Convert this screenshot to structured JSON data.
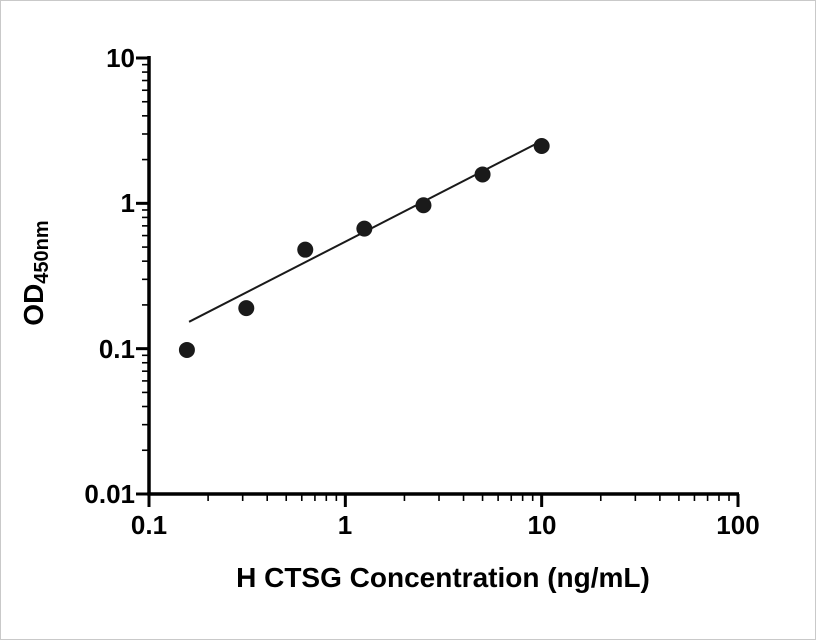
{
  "chart_data": {
    "type": "scatter",
    "title": "",
    "xlabel": "H CTSG Concentration (ng/mL)",
    "ylabel_main": "OD",
    "ylabel_sub": "450nm",
    "x_scale": "log",
    "y_scale": "log",
    "xlim": [
      0.1,
      100
    ],
    "ylim": [
      0.01,
      10
    ],
    "grid": false,
    "legend": "none",
    "x_tick_values": [
      0.1,
      1,
      10,
      100
    ],
    "x_tick_labels": [
      "0.1",
      "1",
      "10",
      "100"
    ],
    "y_tick_values": [
      10,
      1,
      0.1,
      0.01
    ],
    "y_tick_labels": [
      "10",
      "1",
      "0.1",
      "0.01"
    ],
    "points": {
      "x": [
        0.156,
        0.313,
        0.625,
        1.25,
        2.5,
        5,
        10
      ],
      "y": [
        0.098,
        0.19,
        0.48,
        0.67,
        0.97,
        1.58,
        2.48
      ]
    },
    "fit_line": {
      "x1": 0.16,
      "y1": 0.153,
      "x2": 9.85,
      "y2": 2.66
    },
    "marker": {
      "shape": "circle",
      "radius_px": 8,
      "color": "#1a1a1a"
    },
    "line_color": "#1a1a1a",
    "axis_color": "#000000",
    "background": "#ffffff"
  }
}
